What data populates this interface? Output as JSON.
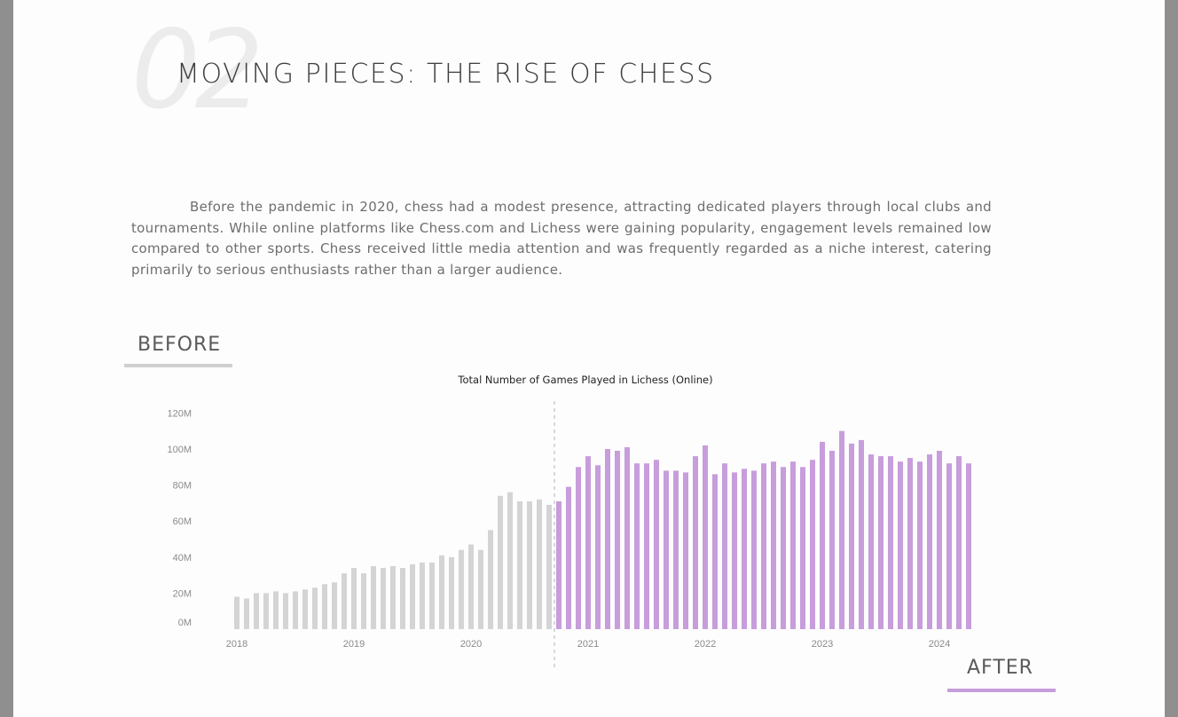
{
  "header": {
    "section_number": "02",
    "title": "MOVING PIECES: THE RISE OF CHESS"
  },
  "intro": {
    "text": "Before the pandemic in 2020, chess had a modest presence, attracting dedicated players through local clubs and tournaments. While online platforms like Chess.com and Lichess were gaining popularity, engagement levels remained low compared to other sports. Chess received little media attention and was frequently regarded as a niche interest, catering primarily to serious enthusiasts rather than a larger audience."
  },
  "tags": {
    "before": "BEFORE",
    "after": "AFTER"
  },
  "colors": {
    "before": "#d4d4d4",
    "after": "#c79ddb",
    "divider": "#b5b5b5"
  },
  "chart_data": {
    "type": "bar",
    "title": "Total Number of Games Played in Lichess (Online)",
    "xlabel": "",
    "ylabel": "",
    "ylim": [
      0,
      125
    ],
    "y_ticks": [
      {
        "value": 0,
        "label": "0M"
      },
      {
        "value": 20,
        "label": "20M"
      },
      {
        "value": 40,
        "label": "40M"
      },
      {
        "value": 60,
        "label": "60M"
      },
      {
        "value": 80,
        "label": "80M"
      },
      {
        "value": 100,
        "label": "100M"
      },
      {
        "value": 120,
        "label": "120M"
      }
    ],
    "x_ticks": [
      {
        "date": "2018-01",
        "label": "2018"
      },
      {
        "date": "2019-01",
        "label": "2019"
      },
      {
        "date": "2020-01",
        "label": "2020"
      },
      {
        "date": "2021-01",
        "label": "2021"
      },
      {
        "date": "2022-01",
        "label": "2022"
      },
      {
        "date": "2023-01",
        "label": "2023"
      },
      {
        "date": "2024-01",
        "label": "2024"
      }
    ],
    "divider_date": "2020-10",
    "unit": "million games",
    "before_series": {
      "months": [
        "2018-01",
        "2018-02",
        "2018-03",
        "2018-04",
        "2018-05",
        "2018-06",
        "2018-07",
        "2018-08",
        "2018-09",
        "2018-10",
        "2018-11",
        "2018-12",
        "2019-01",
        "2019-02",
        "2019-03",
        "2019-04",
        "2019-05",
        "2019-06",
        "2019-07",
        "2019-08",
        "2019-09",
        "2019-10",
        "2019-11",
        "2019-12",
        "2020-01",
        "2020-02",
        "2020-03",
        "2020-04",
        "2020-05",
        "2020-06",
        "2020-07",
        "2020-08",
        "2020-09"
      ],
      "values": [
        18,
        17,
        20,
        20,
        21,
        20,
        21,
        22,
        23,
        25,
        26,
        31,
        34,
        31,
        35,
        34,
        35,
        34,
        36,
        37,
        37,
        41,
        40,
        44,
        47,
        44,
        55,
        74,
        76,
        71,
        71,
        72,
        69
      ]
    },
    "after_series": {
      "months": [
        "2020-10",
        "2020-11",
        "2020-12",
        "2021-01",
        "2021-02",
        "2021-03",
        "2021-04",
        "2021-05",
        "2021-06",
        "2021-07",
        "2021-08",
        "2021-09",
        "2021-10",
        "2021-11",
        "2021-12",
        "2022-01",
        "2022-02",
        "2022-03",
        "2022-04",
        "2022-05",
        "2022-06",
        "2022-07",
        "2022-08",
        "2022-09",
        "2022-10",
        "2022-11",
        "2022-12",
        "2023-01",
        "2023-02",
        "2023-03",
        "2023-04",
        "2023-05",
        "2023-06",
        "2023-07",
        "2023-08",
        "2023-09",
        "2023-10",
        "2023-11",
        "2023-12",
        "2024-01",
        "2024-02",
        "2024-03",
        "2024-04"
      ],
      "values": [
        71,
        79,
        90,
        96,
        91,
        100,
        99,
        101,
        92,
        92,
        94,
        88,
        88,
        87,
        96,
        102,
        86,
        92,
        87,
        89,
        88,
        92,
        93,
        90,
        93,
        90,
        94,
        104,
        99,
        110,
        103,
        105,
        97,
        96,
        96,
        93,
        95,
        93,
        97,
        99,
        92,
        96,
        92
      ]
    }
  }
}
